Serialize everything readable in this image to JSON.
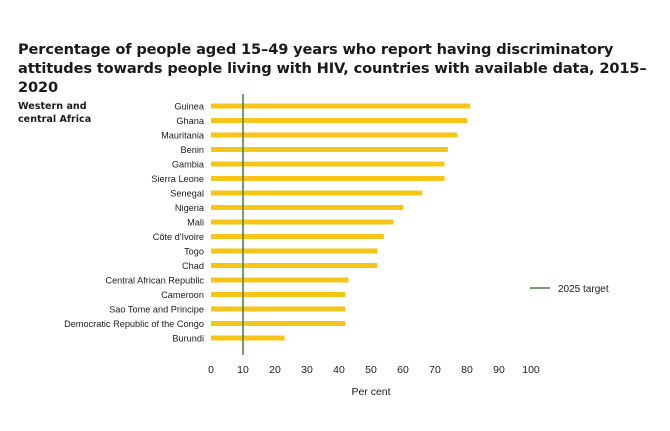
{
  "chart_data": {
    "type": "bar",
    "orientation": "horizontal",
    "title": "Percentage of people aged 15–49 years who report having discriminatory attitudes towards people living with HIV, countries with available data, 2015–2020",
    "region_label": [
      "Western and",
      "central Africa"
    ],
    "categories": [
      "Guinea",
      "Ghana",
      "Mauritania",
      "Benin",
      "Gambia",
      "Sierra Leone",
      "Senegal",
      "Nigeria",
      "Mali",
      "Côte d'Ivoire",
      "Togo",
      "Chad",
      "Central African Republic",
      "Cameroon",
      "Sao Tome and Principe",
      "Democratic Republic of the Congo",
      "Burundi"
    ],
    "values": [
      81,
      80,
      77,
      74,
      73,
      73,
      66,
      60,
      57,
      54,
      52,
      52,
      43,
      42,
      42,
      42,
      23
    ],
    "xlabel": "Per cent",
    "xlim": [
      0,
      100
    ],
    "xticks": [
      "0",
      "10",
      "20",
      "30",
      "40",
      "50",
      "60",
      "70",
      "80",
      "90",
      "100"
    ],
    "target": {
      "value": 10,
      "label": "2025 target",
      "color": "#4a7c3a"
    },
    "bar_color": "#f5c518",
    "grid": false,
    "legend_position": "right"
  }
}
